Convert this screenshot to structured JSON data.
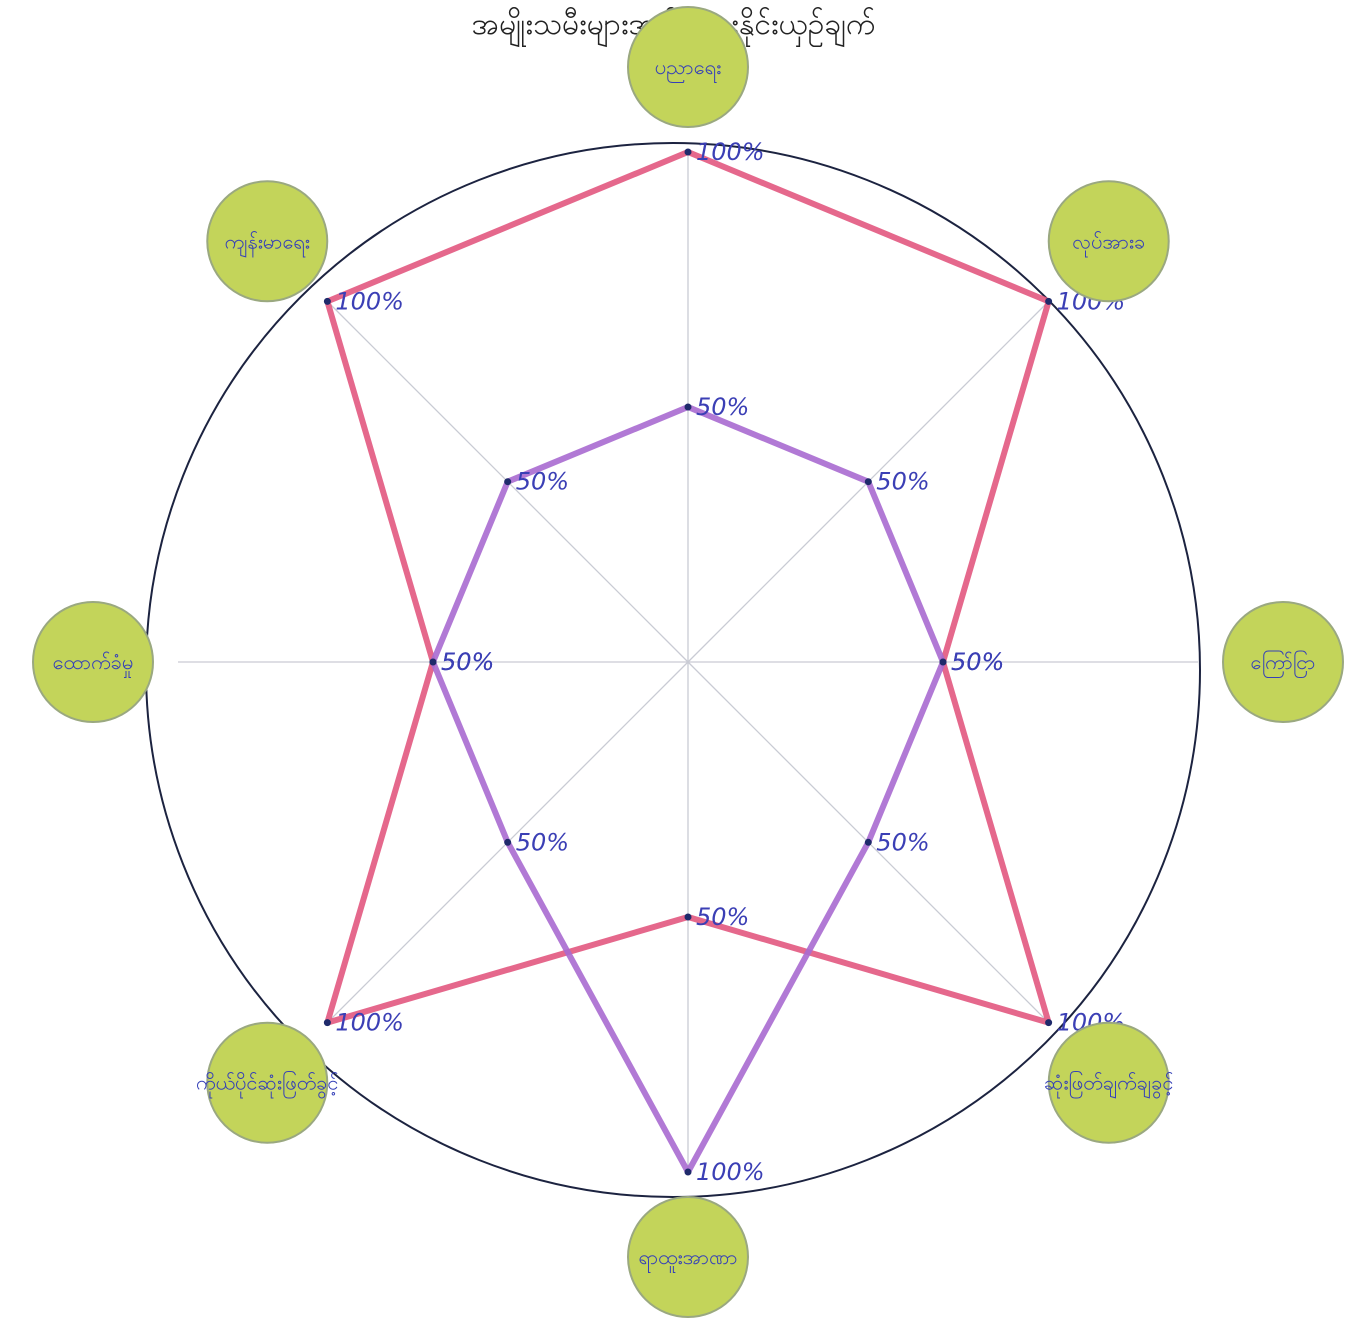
{
  "chart_data": {
    "type": "radar",
    "title": "အမျိုးသမီးများအမျိုးသားနိုင်းယှဉ်ချက်",
    "axes": [
      "ပညာရေး",
      "ကျန်းမာရေး",
      "ထောက်ခံမှု",
      "ကိုယ်ပိုင်ဆုံးဖြတ်ခွင့်",
      "ရာထူးအာဏာ",
      "ဆုံးဖြတ်ချက်ချခွင့်",
      "ကြော်ငြာ",
      "လုပ်အားခ"
    ],
    "axis_labels": [
      "ပညာရေး",
      "လုပ်အားခ",
      "ကြော်ငြာ",
      "ဆုံးဖြတ်ချက်ချခွင့်",
      "ရာထူးအာဏာ",
      "ကိုယ်ပိုင်ဆုံးဖြတ်ခွင့်",
      "ထောက်ခံမှု",
      "ကျန်းမာရေး"
    ],
    "rlim": [
      0,
      100
    ],
    "unit": "%",
    "series": [
      {
        "color": "#e2587f",
        "values": [
          100,
          100,
          50,
          100,
          50,
          100,
          50,
          100
        ]
      },
      {
        "color": "#a86ad0",
        "values": [
          50,
          50,
          50,
          50,
          100,
          50,
          50,
          50
        ]
      }
    ],
    "point_labels": {
      "s1": [
        "100%",
        "100%",
        "50%",
        "100%",
        "50%",
        "100%",
        "50%",
        "100%"
      ],
      "s2": [
        "50%",
        "50%",
        "50%",
        "50%",
        "100%",
        "50%",
        "50%",
        "50%"
      ]
    }
  },
  "colors": {
    "circle_fill": "#c3d45a",
    "circle_stroke": "#9aa880",
    "label_ink": "#3540b8",
    "outline": "#1c2340"
  }
}
